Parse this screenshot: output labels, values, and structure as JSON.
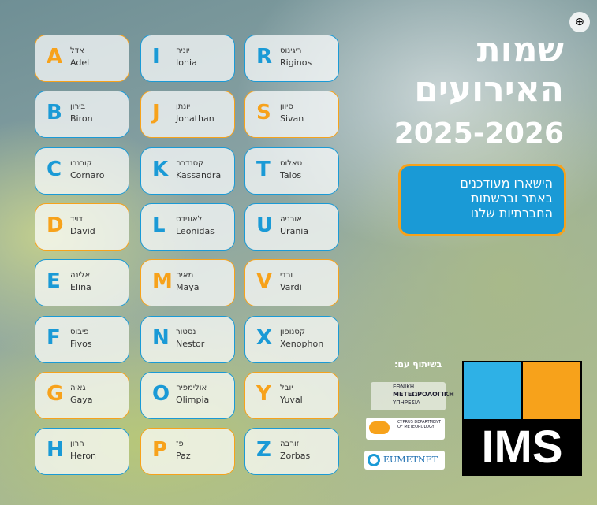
{
  "header": {
    "title_lines": [
      "שמות",
      "האירועים"
    ],
    "season": "2025-2026"
  },
  "cta": {
    "lines": [
      "הישארו מעודכנים",
      "באתר וברשתות",
      "החברתיות שלנו"
    ]
  },
  "partners": {
    "label": "בשיתוף עם:",
    "hnms": [
      "ΕΘΝΙΚΗ",
      "ΜΕΤΕΩΡΟΛΟΓΙΚΗ",
      "ΥΠΗΡΕΣΙΑ"
    ],
    "cyprus": [
      "CYPRUS",
      "DEPARTMENT",
      "OF",
      "METEOROLOGY"
    ],
    "eumetnet": "EUMETNET"
  },
  "logo": {
    "text": "IMS"
  },
  "names": [
    {
      "letter": "A",
      "hebrew": "אדל",
      "english": "Adel",
      "color": "#f7a21b"
    },
    {
      "letter": "I",
      "hebrew": "יוניה",
      "english": "Ionia",
      "color": "#1a9ad6"
    },
    {
      "letter": "R",
      "hebrew": "ריגינוס",
      "english": "Riginos",
      "color": "#1a9ad6"
    },
    {
      "letter": "B",
      "hebrew": "בירון",
      "english": "Biron",
      "color": "#1a9ad6"
    },
    {
      "letter": "J",
      "hebrew": "יונתן",
      "english": "Jonathan",
      "color": "#f7a21b"
    },
    {
      "letter": "S",
      "hebrew": "סיוון",
      "english": "Sivan",
      "color": "#f7a21b"
    },
    {
      "letter": "C",
      "hebrew": "קורנרו",
      "english": "Cornaro",
      "color": "#1a9ad6"
    },
    {
      "letter": "K",
      "hebrew": "קסנדרה",
      "english": "Kassandra",
      "color": "#1a9ad6"
    },
    {
      "letter": "T",
      "hebrew": "טאלוס",
      "english": "Talos",
      "color": "#1a9ad6"
    },
    {
      "letter": "D",
      "hebrew": "דויד",
      "english": "David",
      "color": "#f7a21b"
    },
    {
      "letter": "L",
      "hebrew": "לאונידס",
      "english": "Leonidas",
      "color": "#1a9ad6"
    },
    {
      "letter": "U",
      "hebrew": "אורניה",
      "english": "Urania",
      "color": "#1a9ad6"
    },
    {
      "letter": "E",
      "hebrew": "אלינה",
      "english": "Elina",
      "color": "#1a9ad6"
    },
    {
      "letter": "M",
      "hebrew": "מאיה",
      "english": "Maya",
      "color": "#f7a21b"
    },
    {
      "letter": "V",
      "hebrew": "ורדי",
      "english": "Vardi",
      "color": "#f7a21b"
    },
    {
      "letter": "F",
      "hebrew": "פיבוס",
      "english": "Fivos",
      "color": "#1a9ad6"
    },
    {
      "letter": "N",
      "hebrew": "נסטור",
      "english": "Nestor",
      "color": "#1a9ad6"
    },
    {
      "letter": "X",
      "hebrew": "קסנופון",
      "english": "Xenophon",
      "color": "#1a9ad6"
    },
    {
      "letter": "G",
      "hebrew": "גאיה",
      "english": "Gaya",
      "color": "#f7a21b"
    },
    {
      "letter": "O",
      "hebrew": "אולימפיה",
      "english": "Olimpia",
      "color": "#1a9ad6"
    },
    {
      "letter": "Y",
      "hebrew": "יובל",
      "english": "Yuval",
      "color": "#f7a21b"
    },
    {
      "letter": "H",
      "hebrew": "הרון",
      "english": "Heron",
      "color": "#1a9ad6"
    },
    {
      "letter": "P",
      "hebrew": "פז",
      "english": "Paz",
      "color": "#f7a21b"
    },
    {
      "letter": "Z",
      "hebrew": "זורבה",
      "english": "Zorbas",
      "color": "#1a9ad6"
    }
  ]
}
